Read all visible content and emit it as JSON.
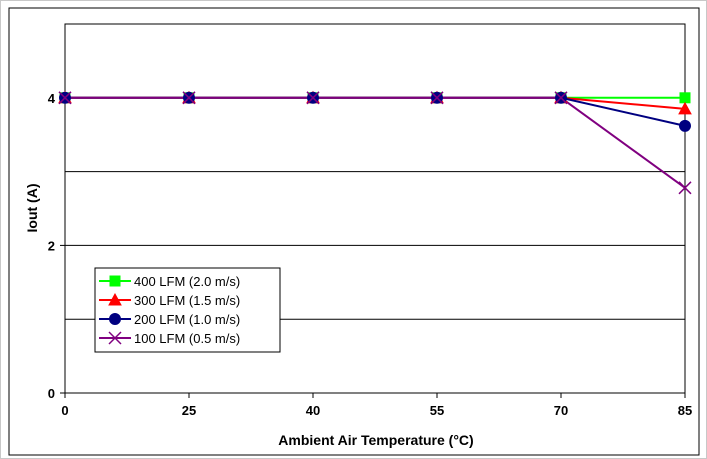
{
  "chart_data": {
    "type": "line",
    "title": "",
    "xlabel": "Ambient Air Temperature (°C)",
    "ylabel": "Iout (A)",
    "x": [
      0,
      25,
      40,
      55,
      70,
      85
    ],
    "x_tick_labels": [
      "0",
      "25",
      "40",
      "55",
      "70",
      "85"
    ],
    "y_ticks": [
      0,
      2,
      4
    ],
    "y_tick_labels": [
      "0",
      "2",
      "4"
    ],
    "ylim": [
      0,
      5
    ],
    "grid": true,
    "gridlines_y": [
      1,
      3
    ],
    "legend_position": "bottom-left",
    "series": [
      {
        "name": "400 LFM (2.0 m/s)",
        "values": [
          4,
          4,
          4,
          4,
          4,
          4
        ],
        "color": "#00ff00",
        "marker": "square"
      },
      {
        "name": "300 LFM (1.5 m/s)",
        "values": [
          4,
          4,
          4,
          4,
          4,
          3.85
        ],
        "color": "#ff0000",
        "marker": "triangle"
      },
      {
        "name": "200 LFM (1.0 m/s)",
        "values": [
          4,
          4,
          4,
          4,
          4,
          3.62
        ],
        "color": "#000080",
        "marker": "circle"
      },
      {
        "name": "100 LFM (0.5 m/s)",
        "values": [
          4,
          4,
          4,
          4,
          4,
          2.78
        ],
        "color": "#800080",
        "marker": "x"
      }
    ]
  }
}
